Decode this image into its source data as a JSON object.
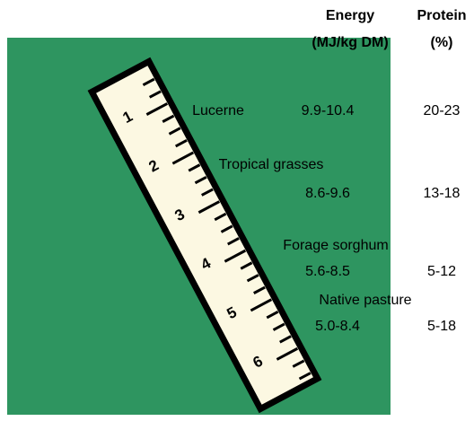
{
  "header": {
    "energy": {
      "title": "Energy",
      "unit": "(MJ/kg DM)"
    },
    "protein": {
      "title": "Protein",
      "unit": "(%)"
    }
  },
  "rows": [
    {
      "name": "Lucerne",
      "energy": "9.9-10.4",
      "protein": "20-23"
    },
    {
      "name": "Tropical grasses",
      "energy": "8.6-9.6",
      "protein": "13-18"
    },
    {
      "name": "Forage sorghum",
      "energy": "5.6-8.5",
      "protein": "5-12"
    },
    {
      "name": "Native pasture",
      "energy": "5.0-8.4",
      "protein": "5-18"
    }
  ],
  "ruler": {
    "labels": [
      "1",
      "2",
      "3",
      "4",
      "5",
      "6"
    ]
  }
}
